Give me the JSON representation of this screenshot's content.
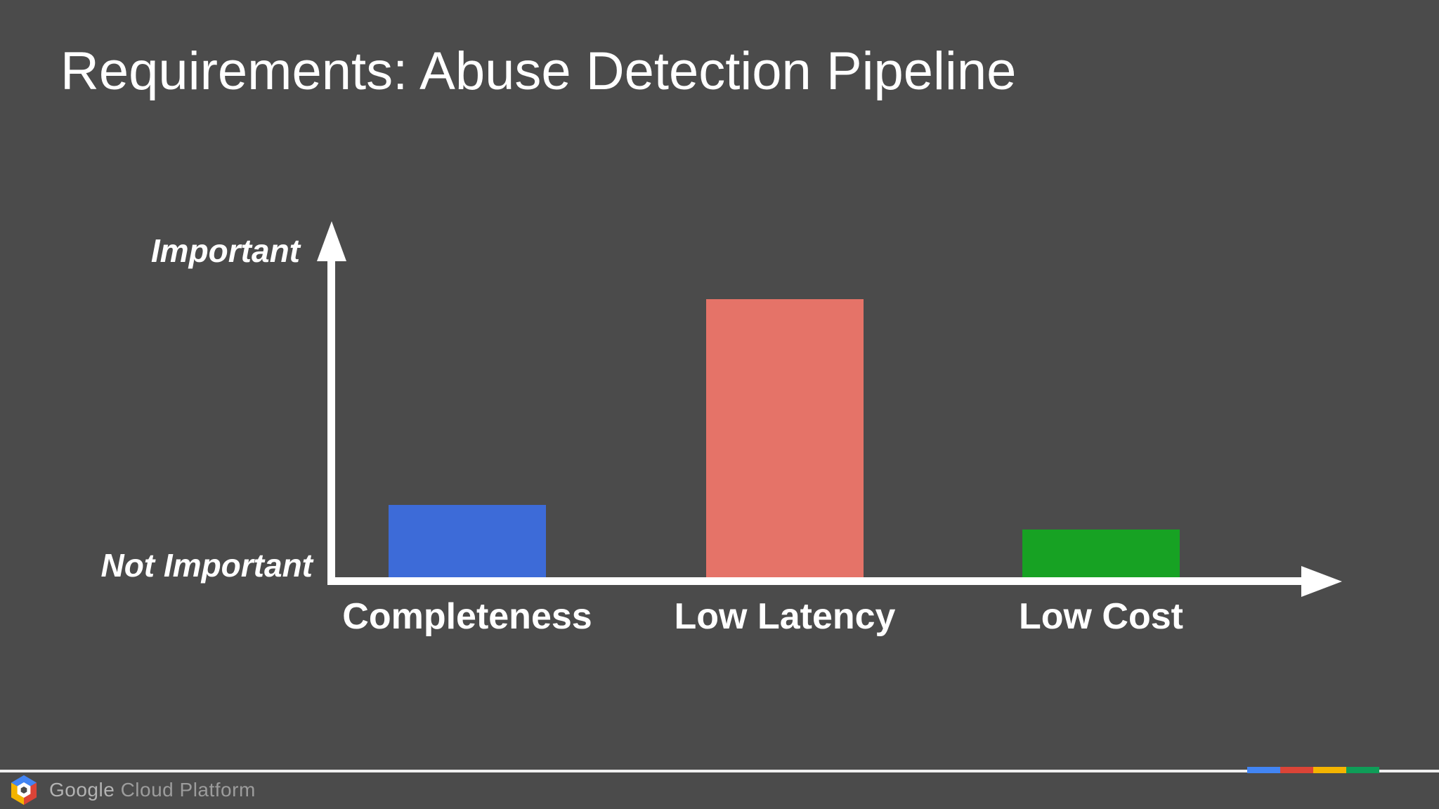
{
  "slide": {
    "title": "Requirements: Abuse Detection Pipeline",
    "background": "#4b4b4b"
  },
  "chart_data": {
    "type": "bar",
    "title": "Requirements: Abuse Detection Pipeline",
    "categories": [
      "Completeness",
      "Low Latency",
      "Low Cost"
    ],
    "values": [
      0.21,
      0.79,
      0.14
    ],
    "colors": [
      "#3d6bd8",
      "#e57368",
      "#17a223"
    ],
    "xlabel": "",
    "ylabel": "",
    "y_tick_labels": [
      "Not Important",
      "Important"
    ],
    "ylabel_top": "Important",
    "ylabel_bottom": "Not Important",
    "ylim": [
      0,
      1
    ],
    "grid": false,
    "legend": "none",
    "axis_color": "#ffffff"
  },
  "footer": {
    "brand_google": "Google",
    "brand_rest": " Cloud Platform",
    "strip_colors": [
      "#4285f4",
      "#db4437",
      "#f4b400",
      "#0f9d58"
    ],
    "logo_colors": {
      "blue": "#4285f4",
      "yellow": "#f4b400",
      "red": "#db4437",
      "ring": "#ffffff",
      "hole": "#4b4b4b"
    }
  }
}
